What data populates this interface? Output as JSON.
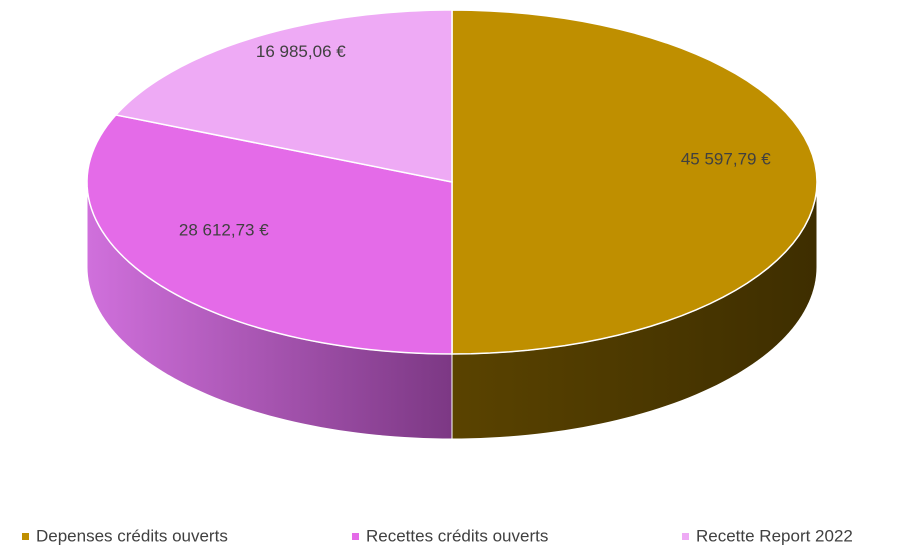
{
  "chart_data": {
    "type": "pie3d",
    "categories": [
      "Depenses crédits ouverts",
      "Recettes crédits ouverts",
      "Recette Report 2022"
    ],
    "values": [
      45597.79,
      28612.73,
      16985.06
    ],
    "value_labels": [
      "45 597,79 €",
      "28 612,73 €",
      "16 985,06 €"
    ],
    "colors": [
      "#bf8f00",
      "#e46be8",
      "#eeaaf5"
    ],
    "side_colors": [
      "#4d3a00",
      "#9a40a6",
      "#b070b8"
    ],
    "legend": "bottom"
  }
}
